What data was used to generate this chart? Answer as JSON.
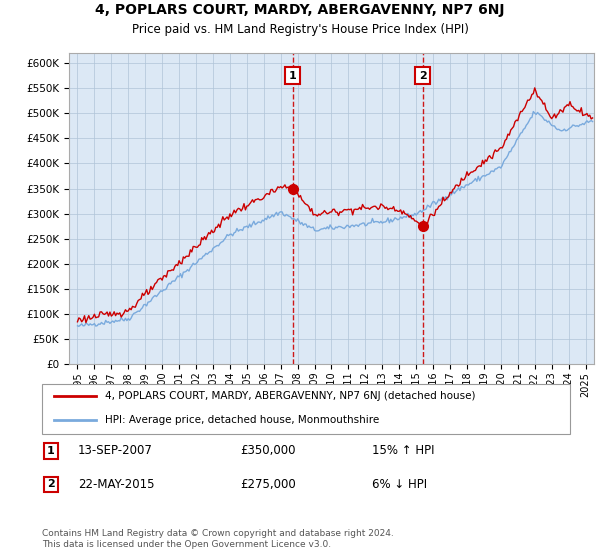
{
  "title": "4, POPLARS COURT, MARDY, ABERGAVENNY, NP7 6NJ",
  "subtitle": "Price paid vs. HM Land Registry's House Price Index (HPI)",
  "legend_line1": "4, POPLARS COURT, MARDY, ABERGAVENNY, NP7 6NJ (detached house)",
  "legend_line2": "HPI: Average price, detached house, Monmouthshire",
  "annotation1_label": "1",
  "annotation1_date": "13-SEP-2007",
  "annotation1_price": "£350,000",
  "annotation1_hpi": "15% ↑ HPI",
  "annotation2_label": "2",
  "annotation2_date": "22-MAY-2015",
  "annotation2_price": "£275,000",
  "annotation2_hpi": "6% ↓ HPI",
  "footer": "Contains HM Land Registry data © Crown copyright and database right 2024.\nThis data is licensed under the Open Government Licence v3.0.",
  "purchase1_year": 2007.7,
  "purchase1_price": 350000,
  "purchase2_year": 2015.38,
  "purchase2_price": 275000,
  "hpi_color": "#7aaadd",
  "price_color": "#cc0000",
  "vline_color": "#cc0000",
  "plot_bg_color": "#dce8f5",
  "background_color": "#ffffff",
  "grid_color": "#b0c4d8",
  "ylim": [
    0,
    620000
  ],
  "yticks": [
    0,
    50000,
    100000,
    150000,
    200000,
    250000,
    300000,
    350000,
    400000,
    450000,
    500000,
    550000,
    600000
  ],
  "xlim_start": 1994.5,
  "xlim_end": 2025.5
}
